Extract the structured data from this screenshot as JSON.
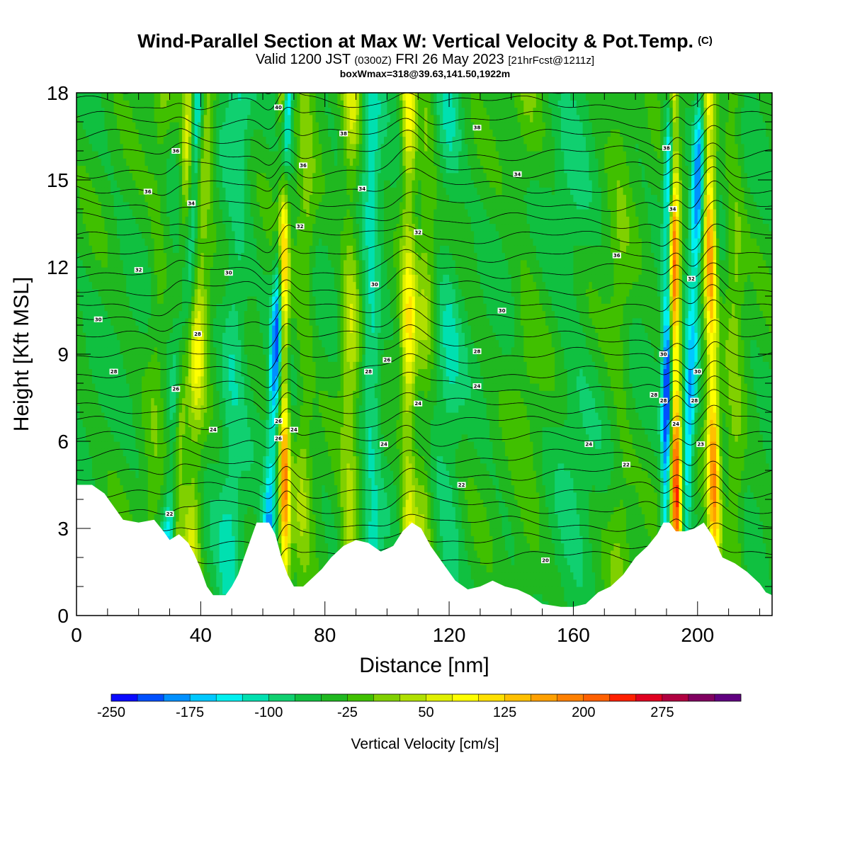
{
  "header": {
    "title": "Wind-Parallel Section at Max W: Vertical Velocity & Pot.Temp.",
    "copyright": "(C)",
    "valid_prefix": "Valid 1200 JST",
    "valid_z": "(0300Z)",
    "valid_date": "FRI 26 May 2023",
    "forecast": "[21hrFcst@1211z]",
    "boxinfo": "boxWmax=318@39.63,141.50,1922m"
  },
  "colors": {
    "palette": [
      "#0a0aff",
      "#0050ff",
      "#0090ff",
      "#00c8ff",
      "#00f0f0",
      "#00e0b0",
      "#10d070",
      "#10c040",
      "#20b820",
      "#40c000",
      "#80d000",
      "#b0e000",
      "#e0f000",
      "#ffff00",
      "#ffe000",
      "#ffc000",
      "#ffa000",
      "#ff8000",
      "#ff6000",
      "#ff2000",
      "#e00020",
      "#b00040",
      "#800060",
      "#600080"
    ],
    "terrain": "#ffffff",
    "contour": "#000000"
  },
  "chart_data": {
    "type": "heatmap",
    "xlabel": "Distance [nm]",
    "ylabel": "Height [Kft MSL]",
    "xlim": [
      0,
      224
    ],
    "ylim": [
      0,
      18
    ],
    "xticks": [
      "0",
      "40",
      "80",
      "120",
      "160",
      "200"
    ],
    "yticks": [
      "0",
      "3",
      "6",
      "9",
      "12",
      "15",
      "18"
    ],
    "colorbar": {
      "label": "Vertical Velocity [cm/s]",
      "range": [
        -250,
        350
      ],
      "interval": 25,
      "tick_labels": [
        "-250",
        "-175",
        "-100",
        "-25",
        "50",
        "125",
        "200",
        "275"
      ]
    },
    "terrain_height": [
      [
        0,
        4.5
      ],
      [
        5,
        4.5
      ],
      [
        9,
        4.2
      ],
      [
        11,
        3.9
      ],
      [
        13,
        3.6
      ],
      [
        15,
        3.3
      ],
      [
        20,
        3.2
      ],
      [
        25,
        3.3
      ],
      [
        28,
        2.9
      ],
      [
        30,
        2.6
      ],
      [
        33,
        2.8
      ],
      [
        36,
        2.5
      ],
      [
        38,
        2.1
      ],
      [
        40,
        1.6
      ],
      [
        42,
        1.0
      ],
      [
        44,
        0.7
      ],
      [
        48,
        0.7
      ],
      [
        50,
        1.0
      ],
      [
        52,
        1.4
      ],
      [
        54,
        2.0
      ],
      [
        56,
        2.6
      ],
      [
        58,
        3.2
      ],
      [
        62,
        3.2
      ],
      [
        64,
        2.8
      ],
      [
        66,
        2.0
      ],
      [
        68,
        1.4
      ],
      [
        70,
        1.0
      ],
      [
        73,
        1.0
      ],
      [
        76,
        1.3
      ],
      [
        79,
        1.6
      ],
      [
        82,
        2.0
      ],
      [
        86,
        2.4
      ],
      [
        90,
        2.6
      ],
      [
        94,
        2.5
      ],
      [
        98,
        2.2
      ],
      [
        102,
        2.4
      ],
      [
        105,
        2.9
      ],
      [
        108,
        3.2
      ],
      [
        111,
        3.0
      ],
      [
        114,
        2.4
      ],
      [
        118,
        1.8
      ],
      [
        122,
        1.2
      ],
      [
        126,
        0.9
      ],
      [
        130,
        1.0
      ],
      [
        134,
        1.2
      ],
      [
        138,
        1.0
      ],
      [
        142,
        0.9
      ],
      [
        146,
        0.7
      ],
      [
        150,
        0.4
      ],
      [
        156,
        0.3
      ],
      [
        160,
        0.3
      ],
      [
        164,
        0.4
      ],
      [
        168,
        0.8
      ],
      [
        172,
        1.0
      ],
      [
        176,
        1.4
      ],
      [
        180,
        2.0
      ],
      [
        184,
        2.4
      ],
      [
        187,
        2.8
      ],
      [
        189,
        3.2
      ],
      [
        191,
        3.2
      ],
      [
        193,
        2.9
      ],
      [
        196,
        2.9
      ],
      [
        199,
        3.0
      ],
      [
        202,
        3.2
      ],
      [
        205,
        2.7
      ],
      [
        208,
        2.0
      ],
      [
        212,
        1.8
      ],
      [
        216,
        1.5
      ],
      [
        220,
        1.1
      ],
      [
        222,
        0.8
      ],
      [
        224,
        0.7
      ]
    ],
    "vertical_velocity_bands": [
      {
        "x": 25,
        "dx": 3,
        "w": 40,
        "slope": 0.2
      },
      {
        "x": 33,
        "dx": 2,
        "w": 150,
        "slope": 0.3
      },
      {
        "x": 38,
        "dx": 3,
        "w": 110,
        "slope": 0.3
      },
      {
        "x": 32,
        "dx": 2.5,
        "w": -150,
        "slope": 0.6
      },
      {
        "x": 50,
        "dx": 4,
        "w": -60,
        "slope": 0.2
      },
      {
        "x": 67,
        "dx": 1.6,
        "w": 220,
        "slope": -0.05
      },
      {
        "x": 63,
        "dx": 1.8,
        "w": -160,
        "slope": 0.4
      },
      {
        "x": 73,
        "dx": 3,
        "w": 60,
        "slope": 0.1
      },
      {
        "x": 88,
        "dx": 3,
        "w": 90,
        "slope": 0.05
      },
      {
        "x": 95,
        "dx": 3,
        "w": -80,
        "slope": 0.0
      },
      {
        "x": 107,
        "dx": 2.5,
        "w": 140,
        "slope": 0.0
      },
      {
        "x": 112,
        "dx": 2.5,
        "w": 60,
        "slope": 0.1
      },
      {
        "x": 120,
        "dx": 4,
        "w": -50,
        "slope": 0.0
      },
      {
        "x": 145,
        "dx": 5,
        "w": 30,
        "slope": 0.0
      },
      {
        "x": 160,
        "dx": 6,
        "w": -30,
        "slope": 0.0
      },
      {
        "x": 175,
        "dx": 4,
        "w": 40,
        "slope": 0.0
      },
      {
        "x": 193,
        "dx": 1.8,
        "w": 300,
        "slope": -0.1
      },
      {
        "x": 190,
        "dx": 1.6,
        "w": -220,
        "slope": 0.1
      },
      {
        "x": 197,
        "dx": 2.0,
        "w": -150,
        "slope": 0.35
      },
      {
        "x": 205,
        "dx": 2.0,
        "w": 230,
        "slope": -0.15
      },
      {
        "x": 212,
        "dx": 3,
        "w": 60,
        "slope": 0.0
      }
    ],
    "pot_temp_contour_labels": [
      {
        "x": 32,
        "y": 16.0,
        "text": "36"
      },
      {
        "x": 23,
        "y": 14.6,
        "text": "36"
      },
      {
        "x": 37,
        "y": 14.2,
        "text": "34"
      },
      {
        "x": 20,
        "y": 11.9,
        "text": "32"
      },
      {
        "x": 49,
        "y": 11.8,
        "text": "30"
      },
      {
        "x": 7,
        "y": 10.2,
        "text": "30"
      },
      {
        "x": 39,
        "y": 9.7,
        "text": "28"
      },
      {
        "x": 12,
        "y": 8.4,
        "text": "28"
      },
      {
        "x": 32,
        "y": 7.8,
        "text": "26"
      },
      {
        "x": 44,
        "y": 6.4,
        "text": "24"
      },
      {
        "x": 30,
        "y": 3.5,
        "text": "22"
      },
      {
        "x": 65,
        "y": 17.5,
        "text": "40"
      },
      {
        "x": 86,
        "y": 16.6,
        "text": "38"
      },
      {
        "x": 73,
        "y": 15.5,
        "text": "36"
      },
      {
        "x": 92,
        "y": 14.7,
        "text": "34"
      },
      {
        "x": 72,
        "y": 13.4,
        "text": "32"
      },
      {
        "x": 65,
        "y": 6.7,
        "text": "26"
      },
      {
        "x": 65,
        "y": 6.1,
        "text": "26"
      },
      {
        "x": 70,
        "y": 6.4,
        "text": "24"
      },
      {
        "x": 129,
        "y": 16.8,
        "text": "38"
      },
      {
        "x": 142,
        "y": 15.2,
        "text": "34"
      },
      {
        "x": 110,
        "y": 13.2,
        "text": "32"
      },
      {
        "x": 96,
        "y": 11.4,
        "text": "30"
      },
      {
        "x": 137,
        "y": 10.5,
        "text": "30"
      },
      {
        "x": 129,
        "y": 9.1,
        "text": "28"
      },
      {
        "x": 100,
        "y": 8.8,
        "text": "26"
      },
      {
        "x": 94,
        "y": 8.4,
        "text": "28"
      },
      {
        "x": 129,
        "y": 7.9,
        "text": "24"
      },
      {
        "x": 110,
        "y": 7.3,
        "text": "24"
      },
      {
        "x": 99,
        "y": 5.9,
        "text": "24"
      },
      {
        "x": 124,
        "y": 4.5,
        "text": "22"
      },
      {
        "x": 165,
        "y": 5.9,
        "text": "24"
      },
      {
        "x": 177,
        "y": 5.2,
        "text": "22"
      },
      {
        "x": 151,
        "y": 1.9,
        "text": "20"
      },
      {
        "x": 174,
        "y": 12.4,
        "text": "36"
      },
      {
        "x": 190,
        "y": 16.1,
        "text": "38"
      },
      {
        "x": 192,
        "y": 14.0,
        "text": "34"
      },
      {
        "x": 198,
        "y": 11.6,
        "text": "32"
      },
      {
        "x": 189,
        "y": 9.0,
        "text": "30"
      },
      {
        "x": 200,
        "y": 8.4,
        "text": "30"
      },
      {
        "x": 186,
        "y": 7.6,
        "text": "28"
      },
      {
        "x": 189,
        "y": 7.4,
        "text": "28"
      },
      {
        "x": 199,
        "y": 7.4,
        "text": "28"
      },
      {
        "x": 193,
        "y": 6.6,
        "text": "24"
      },
      {
        "x": 201,
        "y": 5.9,
        "text": "23"
      }
    ]
  }
}
